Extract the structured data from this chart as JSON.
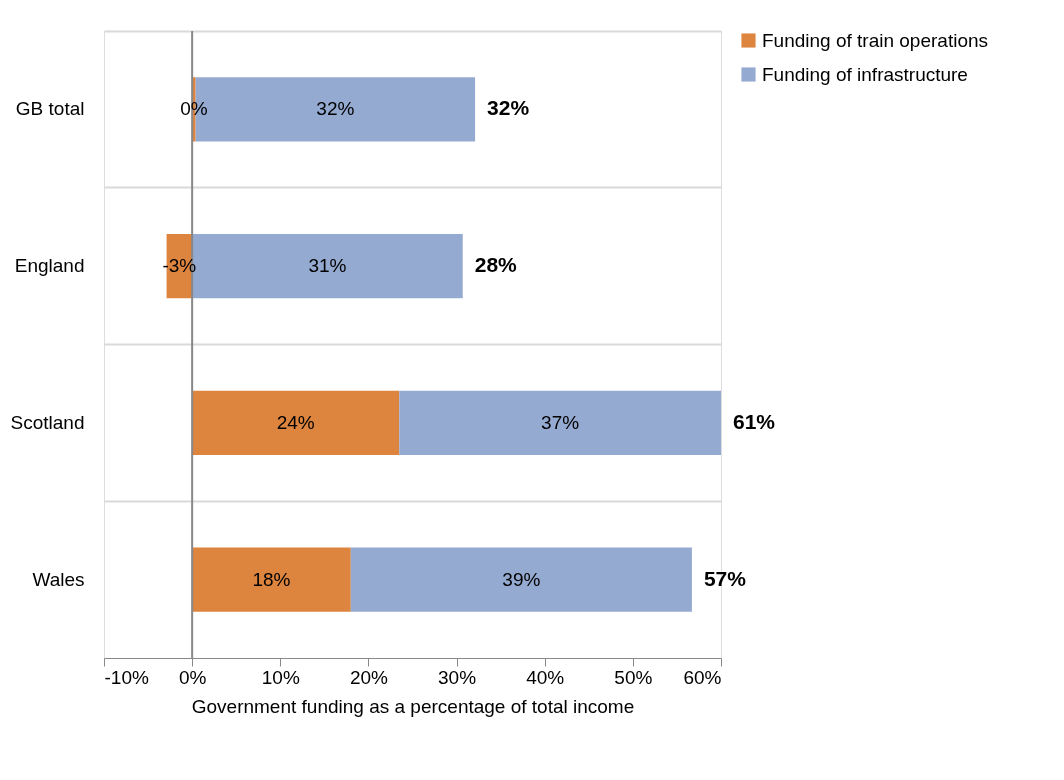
{
  "chart_data": {
    "type": "bar",
    "orientation": "horizontal",
    "stacked": true,
    "categories": [
      "GB total",
      "England",
      "Scotland",
      "Wales"
    ],
    "series": [
      {
        "name": "Funding of train operations",
        "color": "#dd843f",
        "values": [
          0.4,
          -2.9,
          23.5,
          18.0
        ],
        "value_labels": [
          "0%",
          "-3%",
          "24%",
          "18%"
        ]
      },
      {
        "name": "Funding of infrastructure",
        "color": "#95aad1",
        "values": [
          31.7,
          30.7,
          36.5,
          38.7
        ],
        "value_labels": [
          "32%",
          "31%",
          "37%",
          "39%"
        ]
      }
    ],
    "totals": [
      "32%",
      "28%",
      "61%",
      "57%"
    ],
    "xlabel": "Government funding as a percentage of total income",
    "xlim": [
      -10,
      60
    ],
    "xticks": [
      {
        "value": -10,
        "label": "-10%"
      },
      {
        "value": 0,
        "label": "0%"
      },
      {
        "value": 10,
        "label": "10%"
      },
      {
        "value": 20,
        "label": "20%"
      },
      {
        "value": 30,
        "label": "30%"
      },
      {
        "value": 40,
        "label": "40%"
      },
      {
        "value": 50,
        "label": "50%"
      },
      {
        "value": 60,
        "label": "60%"
      }
    ],
    "grid": "y",
    "legend": "right"
  }
}
